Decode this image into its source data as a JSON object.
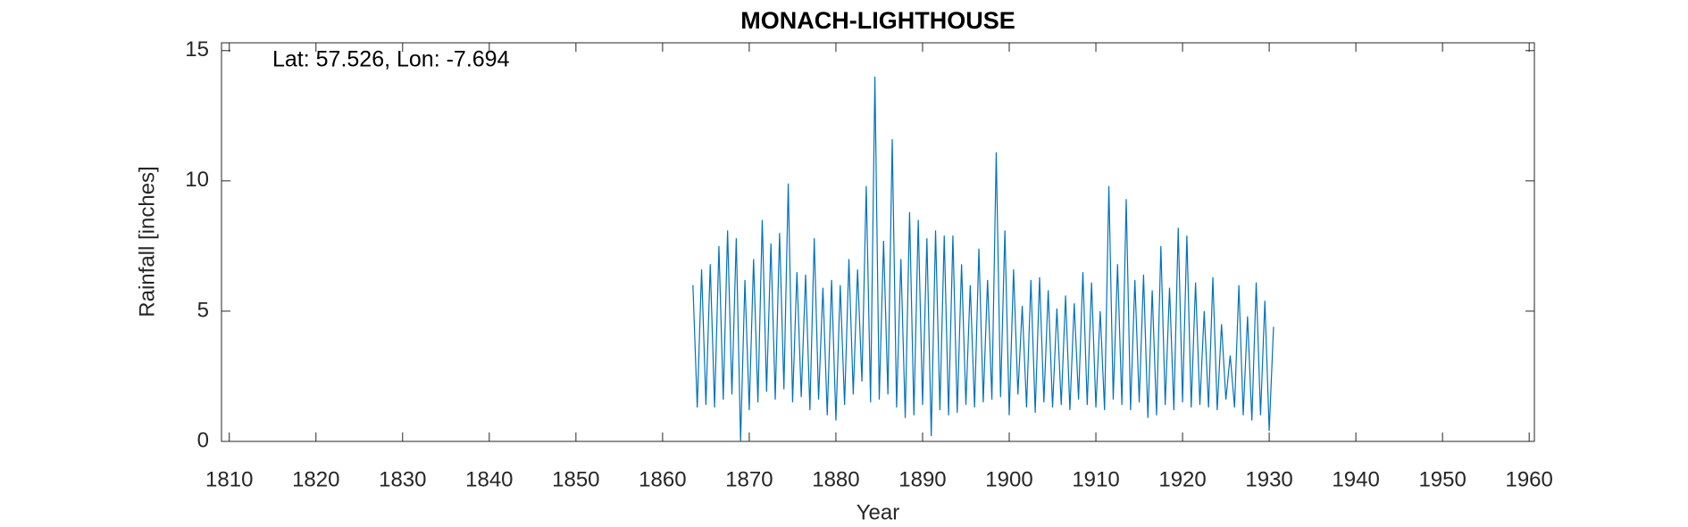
{
  "chart_data": {
    "type": "line",
    "title": "MONACH-LIGHTHOUSE",
    "annotation": "Lat: 57.526, Lon: -7.694",
    "x_label": "Year",
    "y_label": "Rainfall [inches]",
    "color": "#0072BD",
    "x": [
      1863.5,
      1864,
      1864.5,
      1865,
      1865.5,
      1866,
      1866.5,
      1867,
      1867.5,
      1868,
      1868.5,
      1869,
      1869.5,
      1870,
      1870.5,
      1871,
      1871.5,
      1872,
      1872.5,
      1873,
      1873.5,
      1874,
      1874.5,
      1875,
      1875.5,
      1876,
      1876.5,
      1877,
      1877.5,
      1878,
      1878.5,
      1879,
      1879.5,
      1880,
      1880.5,
      1881,
      1881.5,
      1882,
      1882.5,
      1883,
      1883.5,
      1884,
      1884.5,
      1885,
      1885.5,
      1886,
      1886.5,
      1887,
      1887.5,
      1888,
      1888.5,
      1889,
      1889.5,
      1890,
      1890.5,
      1891,
      1891.5,
      1892,
      1892.5,
      1893,
      1893.5,
      1894,
      1894.5,
      1895,
      1895.5,
      1896,
      1896.5,
      1897,
      1897.5,
      1898,
      1898.5,
      1899,
      1899.5,
      1900,
      1900.5,
      1901,
      1901.5,
      1902,
      1902.5,
      1903,
      1903.5,
      1904,
      1904.5,
      1905,
      1905.5,
      1906,
      1906.5,
      1907,
      1907.5,
      1908,
      1908.5,
      1909,
      1909.5,
      1910,
      1910.5,
      1911,
      1911.5,
      1912,
      1912.5,
      1913,
      1913.5,
      1914,
      1914.5,
      1915,
      1915.5,
      1916,
      1916.5,
      1917,
      1917.5,
      1918,
      1918.5,
      1919,
      1919.5,
      1920,
      1920.5,
      1921,
      1921.5,
      1922,
      1922.5,
      1923,
      1923.5,
      1924,
      1924.5,
      1925,
      1925.5,
      1926,
      1926.5,
      1927,
      1927.5,
      1928,
      1928.5,
      1929,
      1929.5,
      1930,
      1930.5
    ],
    "values": [
      6.0,
      1.3,
      6.6,
      1.4,
      6.8,
      1.3,
      7.5,
      1.6,
      8.1,
      1.8,
      7.8,
      0.0,
      6.2,
      1.2,
      7.0,
      1.5,
      8.5,
      1.9,
      7.6,
      1.6,
      8.0,
      2.0,
      9.9,
      1.5,
      6.5,
      1.7,
      6.4,
      1.2,
      7.8,
      1.6,
      5.9,
      1.0,
      6.2,
      0.8,
      6.0,
      1.4,
      7.0,
      1.8,
      6.6,
      2.3,
      9.8,
      1.5,
      14.0,
      1.6,
      7.7,
      1.8,
      11.6,
      1.3,
      7.0,
      0.9,
      8.8,
      1.0,
      8.5,
      1.4,
      7.8,
      0.2,
      8.1,
      1.2,
      7.9,
      1.0,
      7.9,
      1.1,
      6.8,
      1.4,
      6.0,
      1.3,
      7.4,
      1.5,
      6.2,
      1.6,
      11.1,
      1.7,
      8.1,
      1.0,
      6.6,
      1.8,
      5.2,
      1.3,
      6.2,
      1.1,
      6.3,
      1.5,
      5.8,
      1.3,
      5.1,
      1.4,
      5.6,
      1.2,
      5.3,
      1.6,
      6.5,
      1.4,
      6.1,
      1.3,
      5.0,
      1.2,
      9.8,
      1.6,
      6.8,
      1.4,
      9.3,
      1.2,
      6.2,
      1.5,
      6.4,
      0.9,
      5.8,
      1.0,
      7.5,
      1.4,
      5.9,
      1.2,
      8.2,
      1.5,
      7.9,
      1.3,
      6.1,
      1.4,
      5.0,
      1.3,
      6.3,
      1.2,
      4.5,
      1.6,
      3.3,
      1.3,
      6.0,
      1.0,
      4.8,
      0.8,
      6.1,
      1.0,
      5.4,
      0.4,
      4.4
    ],
    "xlim": [
      1809.1,
      1960.6
    ],
    "ylim": [
      0,
      15.3
    ],
    "xticks": [
      1810,
      1820,
      1830,
      1840,
      1850,
      1860,
      1870,
      1880,
      1890,
      1900,
      1910,
      1920,
      1930,
      1940,
      1950,
      1960
    ],
    "yticks": [
      0,
      5,
      10,
      15
    ]
  }
}
